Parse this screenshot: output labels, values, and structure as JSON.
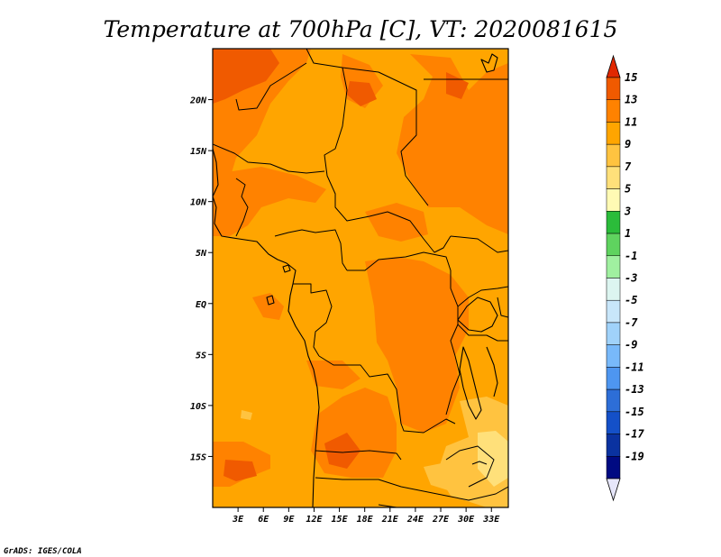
{
  "title": "Temperature at 700hPa [C], VT: 2020081615",
  "credit": "GrADS: IGES/COLA",
  "map": {
    "lon_range": [
      0,
      35
    ],
    "lat_range": [
      -20,
      25
    ],
    "x_ticks": [
      "3E",
      "6E",
      "9E",
      "12E",
      "15E",
      "18E",
      "21E",
      "24E",
      "27E",
      "30E",
      "33E"
    ],
    "y_ticks": [
      "20N",
      "15N",
      "10N",
      "5N",
      "EQ",
      "5S",
      "10S",
      "15S"
    ],
    "base_color": "#ffa500"
  },
  "colorbar": {
    "labels": [
      "15",
      "13",
      "11",
      "9",
      "7",
      "5",
      "3",
      "1",
      "-1",
      "-3",
      "-5",
      "-7",
      "-9",
      "-11",
      "-13",
      "-15",
      "-17",
      "-19"
    ],
    "colors": [
      "#e12800",
      "#f05a00",
      "#ff8200",
      "#ffa500",
      "#ffc340",
      "#ffe07a",
      "#fffab4",
      "#2bbc3a",
      "#5fd35f",
      "#a0f0a0",
      "#dcf5f0",
      "#c8e6fa",
      "#a0d2fa",
      "#78b9fa",
      "#4e96f0",
      "#2d6ed7",
      "#1450c8",
      "#0a32a0",
      "#000a82",
      "#e6e6fa"
    ]
  }
}
